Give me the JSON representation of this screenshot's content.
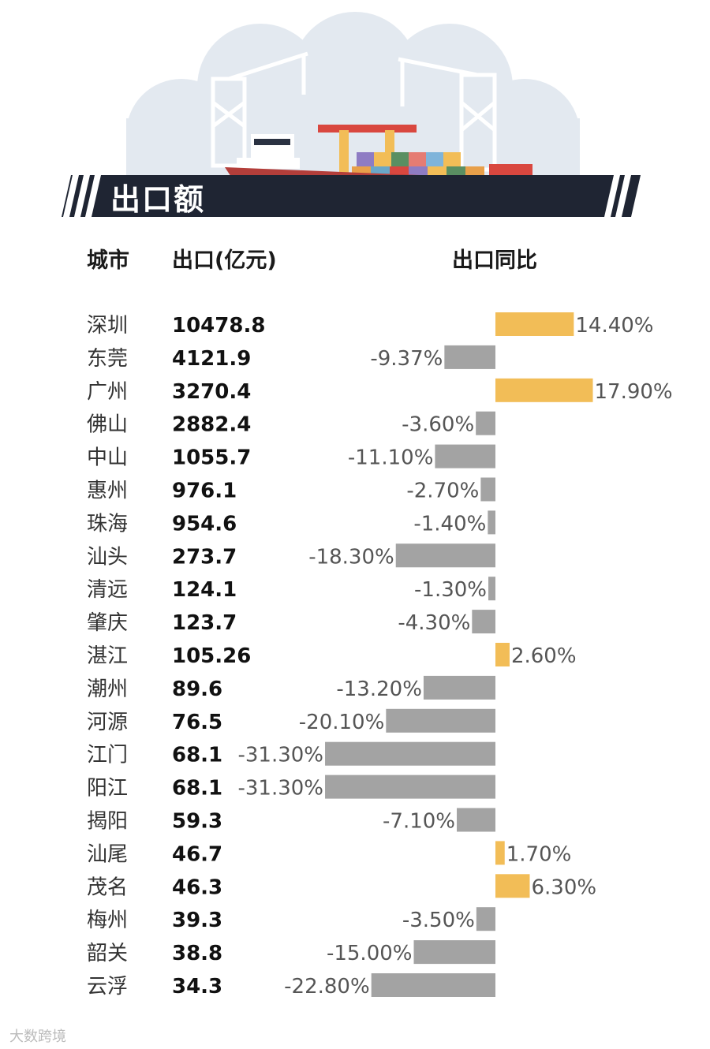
{
  "title": "出口额",
  "headers": {
    "city": "城市",
    "export": "出口(亿元)",
    "yoy": "出口同比"
  },
  "watermark": "大数跨境",
  "colors": {
    "positive": "#F2BD57",
    "negative": "#A3A3A3",
    "banner": "#1F2533",
    "hull": "#B33E3A"
  },
  "chart_data": {
    "type": "bar",
    "title": "出口额",
    "xlabel": "出口同比",
    "ylabel": "城市",
    "xlim": [
      -31.3,
      17.9
    ],
    "categories": [
      "深圳",
      "东莞",
      "广州",
      "佛山",
      "中山",
      "惠州",
      "珠海",
      "汕头",
      "清远",
      "肇庆",
      "湛江",
      "潮州",
      "河源",
      "江门",
      "阳江",
      "揭阳",
      "汕尾",
      "茂名",
      "梅州",
      "韶关",
      "云浮"
    ],
    "exports": [
      "10478.8",
      "4121.9",
      "3270.4",
      "2882.4",
      "1055.7",
      "976.1",
      "954.6",
      "273.7",
      "124.1",
      "123.7",
      "105.26",
      "89.6",
      "76.5",
      "68.1",
      "68.1",
      "59.3",
      "46.7",
      "46.3",
      "39.3",
      "38.8",
      "34.3"
    ],
    "values": [
      14.4,
      -9.37,
      17.9,
      -3.6,
      -11.1,
      -2.7,
      -1.4,
      -18.3,
      -1.3,
      -4.3,
      2.6,
      -13.2,
      -20.1,
      -31.3,
      -31.3,
      -7.1,
      1.7,
      6.3,
      -3.5,
      -15.0,
      -22.8
    ],
    "labels": [
      "14.40%",
      "-9.37%",
      "17.90%",
      "-3.60%",
      "-11.10%",
      "-2.70%",
      "-1.40%",
      "-18.30%",
      "-1.30%",
      "-4.30%",
      "2.60%",
      "-13.20%",
      "-20.10%",
      "-31.30%",
      "-31.30%",
      "-7.10%",
      "1.70%",
      "6.30%",
      "-3.50%",
      "-15.00%",
      "-22.80%"
    ]
  }
}
